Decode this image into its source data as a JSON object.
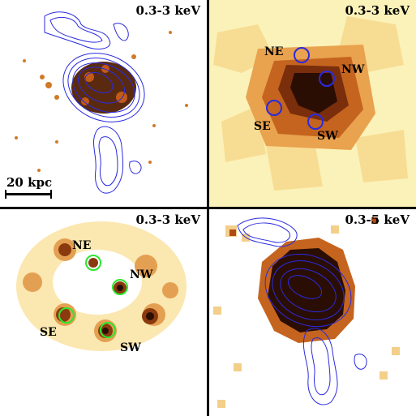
{
  "panels": [
    {
      "band": "0.3-3 keV",
      "scale_label": "20 kpc"
    },
    {
      "band": "0.3-3 keV",
      "regions": [
        "NE",
        "NW",
        "SE",
        "SW"
      ]
    },
    {
      "band": "0.3-3 keV",
      "regions": [
        "NE",
        "NW",
        "SE",
        "SW"
      ]
    },
    {
      "band": "0.3-5 keV"
    }
  ],
  "colors": {
    "contour": "#2a2ae0",
    "circle_p2": "#2a2ae0",
    "circle_p3": "#2ee62e",
    "hot": "#4a1a08",
    "mid": "#c8641e",
    "bg_p2": "#fbf2b9"
  }
}
